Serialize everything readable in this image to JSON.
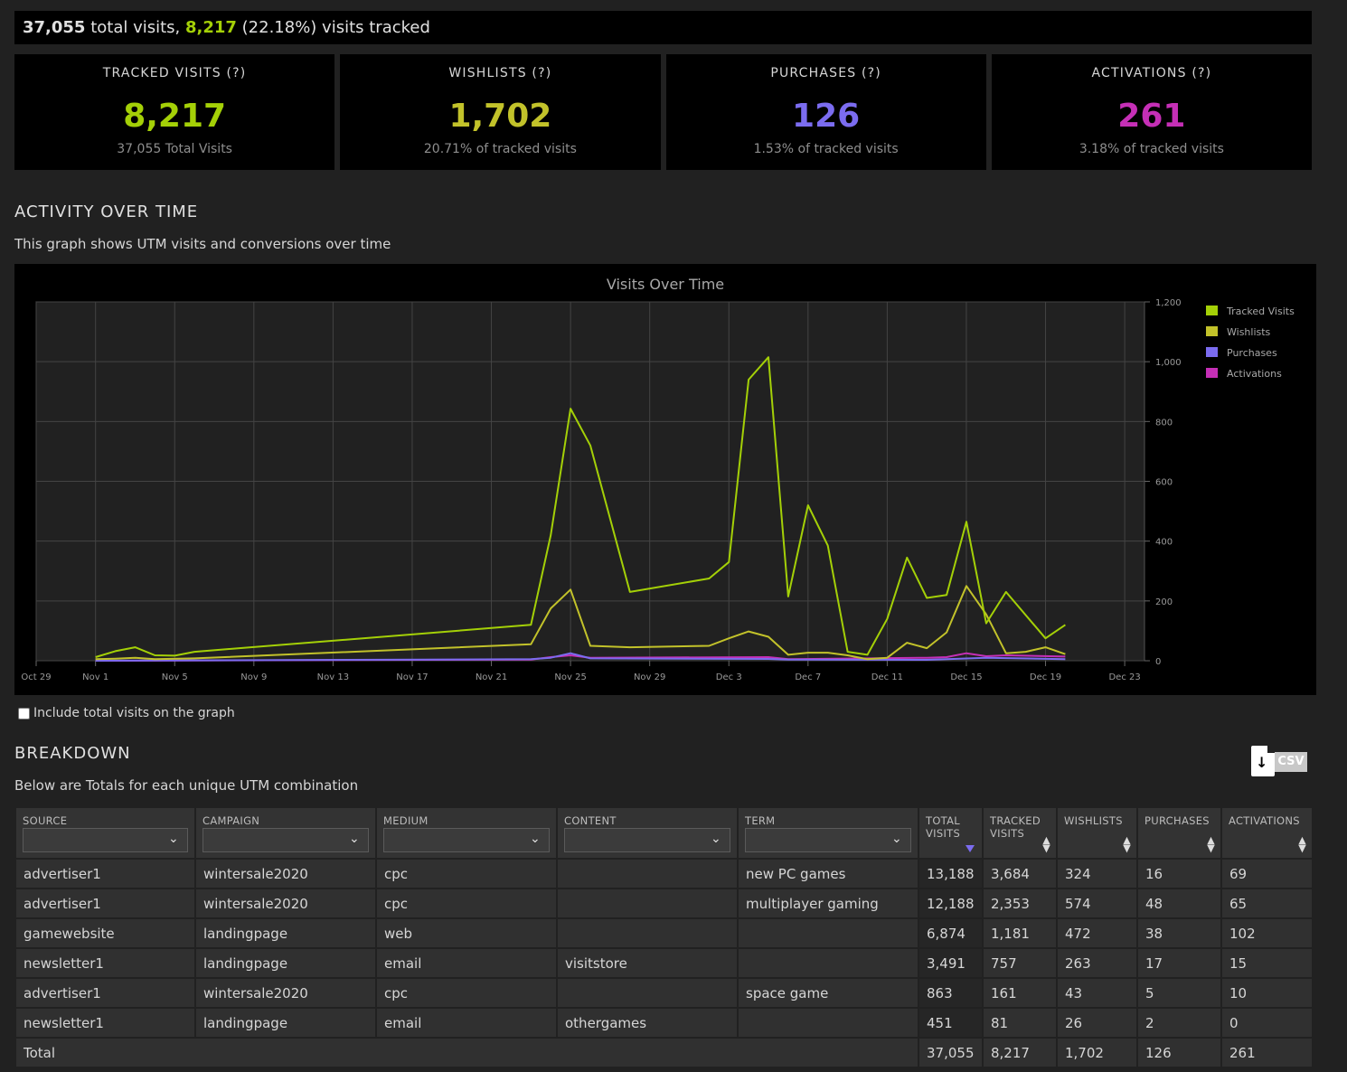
{
  "summary": {
    "total_visits": "37,055",
    "total_visits_suffix": " total visits, ",
    "tracked": "8,217",
    "tracked_suffix": " (22.18%) visits tracked"
  },
  "stats": [
    {
      "label": "TRACKED VISITS (?)",
      "value": "8,217",
      "sub": "37,055 Total Visits",
      "color": "#a4d007"
    },
    {
      "label": "WISHLISTS (?)",
      "value": "1,702",
      "sub": "20.71% of tracked visits",
      "color": "#c2c22a"
    },
    {
      "label": "PURCHASES (?)",
      "value": "126",
      "sub": "1.53% of tracked visits",
      "color": "#7b6cf0"
    },
    {
      "label": "ACTIVATIONS (?)",
      "value": "261",
      "sub": "3.18% of tracked visits",
      "color": "#c52fb6"
    }
  ],
  "activity": {
    "heading": "ACTIVITY OVER TIME",
    "description": "This graph shows UTM visits and conversions over time",
    "include_total_label": "Include total visits on the graph"
  },
  "chart_data": {
    "type": "line",
    "title": "Visits Over Time",
    "xlabel": "",
    "ylabel": "",
    "x_ticks": [
      "Oct 29",
      "Nov 1",
      "Nov 5",
      "Nov 9",
      "Nov 13",
      "Nov 17",
      "Nov 21",
      "Nov 25",
      "Nov 29",
      "Dec 3",
      "Dec 7",
      "Dec 11",
      "Dec 15",
      "Dec 19",
      "Dec 23"
    ],
    "y_ticks": [
      "0",
      "200",
      "400",
      "600",
      "800",
      "1,000",
      "1,200"
    ],
    "ylim": [
      0,
      1200
    ],
    "xlim_days": [
      0,
      56
    ],
    "grid": true,
    "legend_position": "right",
    "series": [
      {
        "name": "Tracked Visits",
        "color": "#a4d007",
        "points": [
          [
            3,
            12
          ],
          [
            4,
            32
          ],
          [
            5,
            45
          ],
          [
            6,
            18
          ],
          [
            7,
            17
          ],
          [
            8,
            30
          ],
          [
            25,
            120
          ],
          [
            26,
            420
          ],
          [
            27,
            843
          ],
          [
            28,
            720
          ],
          [
            30,
            230
          ],
          [
            34,
            275
          ],
          [
            35,
            330
          ],
          [
            36,
            940
          ],
          [
            37,
            1015
          ],
          [
            38,
            215
          ],
          [
            39,
            520
          ],
          [
            40,
            385
          ],
          [
            41,
            30
          ],
          [
            42,
            20
          ],
          [
            43,
            140
          ],
          [
            44,
            345
          ],
          [
            45,
            210
          ],
          [
            46,
            220
          ],
          [
            47,
            465
          ],
          [
            48,
            125
          ],
          [
            49,
            230
          ],
          [
            51,
            75
          ],
          [
            52,
            120
          ]
        ]
      },
      {
        "name": "Wishlists",
        "color": "#c2c22a",
        "points": [
          [
            3,
            5
          ],
          [
            4,
            7
          ],
          [
            5,
            10
          ],
          [
            6,
            5
          ],
          [
            8,
            8
          ],
          [
            25,
            55
          ],
          [
            26,
            175
          ],
          [
            27,
            238
          ],
          [
            28,
            50
          ],
          [
            30,
            45
          ],
          [
            34,
            50
          ],
          [
            35,
            75
          ],
          [
            36,
            98
          ],
          [
            37,
            80
          ],
          [
            38,
            20
          ],
          [
            39,
            27
          ],
          [
            40,
            27
          ],
          [
            41,
            18
          ],
          [
            42,
            5
          ],
          [
            43,
            10
          ],
          [
            44,
            60
          ],
          [
            45,
            42
          ],
          [
            46,
            95
          ],
          [
            47,
            250
          ],
          [
            48,
            155
          ],
          [
            49,
            25
          ],
          [
            50,
            30
          ],
          [
            51,
            45
          ],
          [
            52,
            22
          ]
        ]
      },
      {
        "name": "Purchases",
        "color": "#7b6cf0",
        "points": [
          [
            3,
            0
          ],
          [
            25,
            5
          ],
          [
            26,
            10
          ],
          [
            27,
            25
          ],
          [
            28,
            8
          ],
          [
            37,
            6
          ],
          [
            38,
            4
          ],
          [
            45,
            3
          ],
          [
            48,
            10
          ],
          [
            52,
            5
          ]
        ]
      },
      {
        "name": "Activations",
        "color": "#c52fb6",
        "points": [
          [
            3,
            0
          ],
          [
            25,
            4
          ],
          [
            26,
            12
          ],
          [
            27,
            18
          ],
          [
            28,
            10
          ],
          [
            37,
            12
          ],
          [
            38,
            5
          ],
          [
            45,
            10
          ],
          [
            46,
            12
          ],
          [
            47,
            25
          ],
          [
            48,
            15
          ],
          [
            49,
            18
          ],
          [
            52,
            14
          ]
        ]
      }
    ]
  },
  "breakdown": {
    "heading": "BREAKDOWN",
    "description": "Below are Totals for each unique UTM combination",
    "csv_label": "CSV",
    "columns": [
      "SOURCE",
      "CAMPAIGN",
      "MEDIUM",
      "CONTENT",
      "TERM",
      "TOTAL VISITS",
      "TRACKED VISITS",
      "WISHLISTS",
      "PURCHASES",
      "ACTIVATIONS"
    ],
    "rows": [
      [
        "advertiser1",
        "wintersale2020",
        "cpc",
        "",
        "new PC games",
        "13,188",
        "3,684",
        "324",
        "16",
        "69"
      ],
      [
        "advertiser1",
        "wintersale2020",
        "cpc",
        "",
        "multiplayer gaming",
        "12,188",
        "2,353",
        "574",
        "48",
        "65"
      ],
      [
        "gamewebsite",
        "landingpage",
        "web",
        "",
        "",
        "6,874",
        "1,181",
        "472",
        "38",
        "102"
      ],
      [
        "newsletter1",
        "landingpage",
        "email",
        "visitstore",
        "",
        "3,491",
        "757",
        "263",
        "17",
        "15"
      ],
      [
        "advertiser1",
        "wintersale2020",
        "cpc",
        "",
        "space game",
        "863",
        "161",
        "43",
        "5",
        "10"
      ],
      [
        "newsletter1",
        "landingpage",
        "email",
        "othergames",
        "",
        "451",
        "81",
        "26",
        "2",
        "0"
      ]
    ],
    "total": {
      "label": "Total",
      "values": [
        "37,055",
        "8,217",
        "1,702",
        "126",
        "261"
      ]
    }
  }
}
